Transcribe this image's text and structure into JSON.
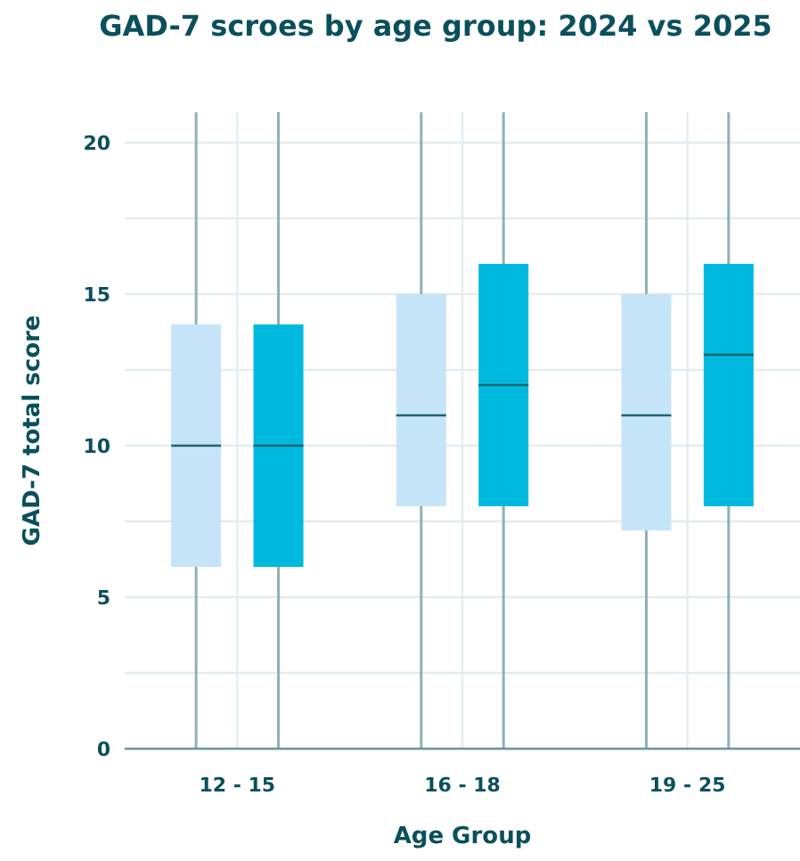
{
  "chart_data": {
    "type": "box",
    "title": "GAD-7 scroes by age group: 2024 vs 2025",
    "xlabel": "Age Group",
    "ylabel": "GAD-7 total score",
    "categories": [
      "12 - 15",
      "16 - 18",
      "19 - 25"
    ],
    "ylim": [
      0,
      21
    ],
    "yticks": [
      0,
      {
        "value": 2.5,
        "label": null
      },
      5,
      {
        "value": 7.5,
        "label": null
      },
      10,
      {
        "value": 12.5,
        "label": null
      },
      15,
      {
        "value": 17.5,
        "label": null
      },
      20
    ],
    "grid": true,
    "series": [
      {
        "color": "#c6e4f7",
        "boxes": [
          {
            "low": 0,
            "q1": 6,
            "median": 10,
            "q3": 14,
            "high": 21
          },
          {
            "low": 0,
            "q1": 8,
            "median": 11,
            "q3": 15,
            "high": 21
          },
          {
            "low": 0,
            "q1": 7.2,
            "median": 11,
            "q3": 15,
            "high": 21
          }
        ]
      },
      {
        "color": "#00b9df",
        "boxes": [
          {
            "low": 0,
            "q1": 6,
            "median": 10,
            "q3": 14,
            "high": 21
          },
          {
            "low": 0,
            "q1": 8,
            "median": 12,
            "q3": 16,
            "high": 21
          },
          {
            "low": 0,
            "q1": 8,
            "median": 13,
            "q3": 16,
            "high": 21
          }
        ]
      }
    ]
  }
}
